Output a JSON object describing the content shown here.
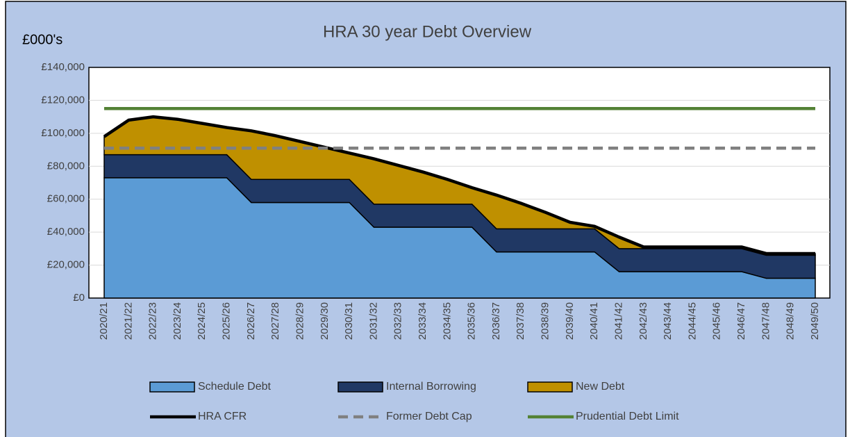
{
  "chart_data": {
    "type": "area",
    "title": "HRA 30 year Debt Overview",
    "y_axis_label": "£000's",
    "categories": [
      "2020/21",
      "2021/22",
      "2022/23",
      "2023/24",
      "2024/25",
      "2025/26",
      "2026/27",
      "2027/28",
      "2028/29",
      "2029/30",
      "2030/31",
      "2031/32",
      "2032/33",
      "2033/34",
      "2034/35",
      "2035/36",
      "2036/37",
      "2037/38",
      "2038/39",
      "2039/40",
      "2040/41",
      "2041/42",
      "2042/43",
      "2043/44",
      "2044/45",
      "2045/46",
      "2046/47",
      "2047/48",
      "2048/49",
      "2049/50"
    ],
    "series": [
      {
        "name": "Schedule Debt",
        "type": "area",
        "color": "#5b9bd5",
        "values": [
          73000,
          73000,
          73000,
          73000,
          73000,
          73000,
          58000,
          58000,
          58000,
          58000,
          58000,
          43000,
          43000,
          43000,
          43000,
          43000,
          28000,
          28000,
          28000,
          28000,
          28000,
          16000,
          16000,
          16000,
          16000,
          16000,
          16000,
          12000,
          12000,
          12000
        ]
      },
      {
        "name": "Internal Borrowing",
        "type": "area",
        "color": "#203864",
        "values": [
          14000,
          14000,
          14000,
          14000,
          14000,
          14000,
          14000,
          14000,
          14000,
          14000,
          14000,
          14000,
          14000,
          14000,
          14000,
          14000,
          14000,
          14000,
          14000,
          14000,
          14000,
          14000,
          14000,
          14000,
          14000,
          14000,
          14000,
          14000,
          14000,
          14000
        ]
      },
      {
        "name": "New Debt",
        "type": "area",
        "color": "#bf9000",
        "values": [
          11000,
          21000,
          23000,
          21500,
          19000,
          16500,
          29500,
          26500,
          23000,
          19500,
          16000,
          27500,
          23500,
          19500,
          15000,
          10000,
          20500,
          15500,
          10000,
          4000,
          1500,
          7000,
          1000,
          1000,
          1000,
          1000,
          1000,
          1000,
          1000,
          1000
        ]
      },
      {
        "name": "HRA CFR",
        "type": "line",
        "color": "#000000",
        "dashed": false,
        "values": [
          98000,
          108000,
          110000,
          108500,
          106000,
          103500,
          101500,
          98500,
          95000,
          91500,
          88000,
          84500,
          80500,
          76500,
          72000,
          67000,
          62500,
          57500,
          52000,
          46000,
          43500,
          37000,
          31000,
          31000,
          31000,
          31000,
          31000,
          27000,
          27000,
          27000
        ]
      },
      {
        "name": "Former Debt Cap",
        "type": "line",
        "color": "#808080",
        "dashed": true,
        "values": [
          91000,
          91000,
          91000,
          91000,
          91000,
          91000,
          91000,
          91000,
          91000,
          91000,
          91000,
          91000,
          91000,
          91000,
          91000,
          91000,
          91000,
          91000,
          91000,
          91000,
          91000,
          91000,
          91000,
          91000,
          91000,
          91000,
          91000,
          91000,
          91000,
          91000
        ]
      },
      {
        "name": "Prudential Debt Limit",
        "type": "line",
        "color": "#548235",
        "dashed": false,
        "values": [
          115000,
          115000,
          115000,
          115000,
          115000,
          115000,
          115000,
          115000,
          115000,
          115000,
          115000,
          115000,
          115000,
          115000,
          115000,
          115000,
          115000,
          115000,
          115000,
          115000,
          115000,
          115000,
          115000,
          115000,
          115000,
          115000,
          115000,
          115000,
          115000,
          115000
        ]
      }
    ],
    "ylim": [
      0,
      140000
    ],
    "yticks": [
      {
        "value": 0,
        "label": "£0"
      },
      {
        "value": 20000,
        "label": "£20,000"
      },
      {
        "value": 40000,
        "label": "£40,000"
      },
      {
        "value": 60000,
        "label": "£60,000"
      },
      {
        "value": 80000,
        "label": "£80,000"
      },
      {
        "value": 100000,
        "label": "£100,000"
      },
      {
        "value": 120000,
        "label": "£120,000"
      },
      {
        "value": 140000,
        "label": "£140,000"
      }
    ],
    "grid": true,
    "legend": "bottom"
  }
}
